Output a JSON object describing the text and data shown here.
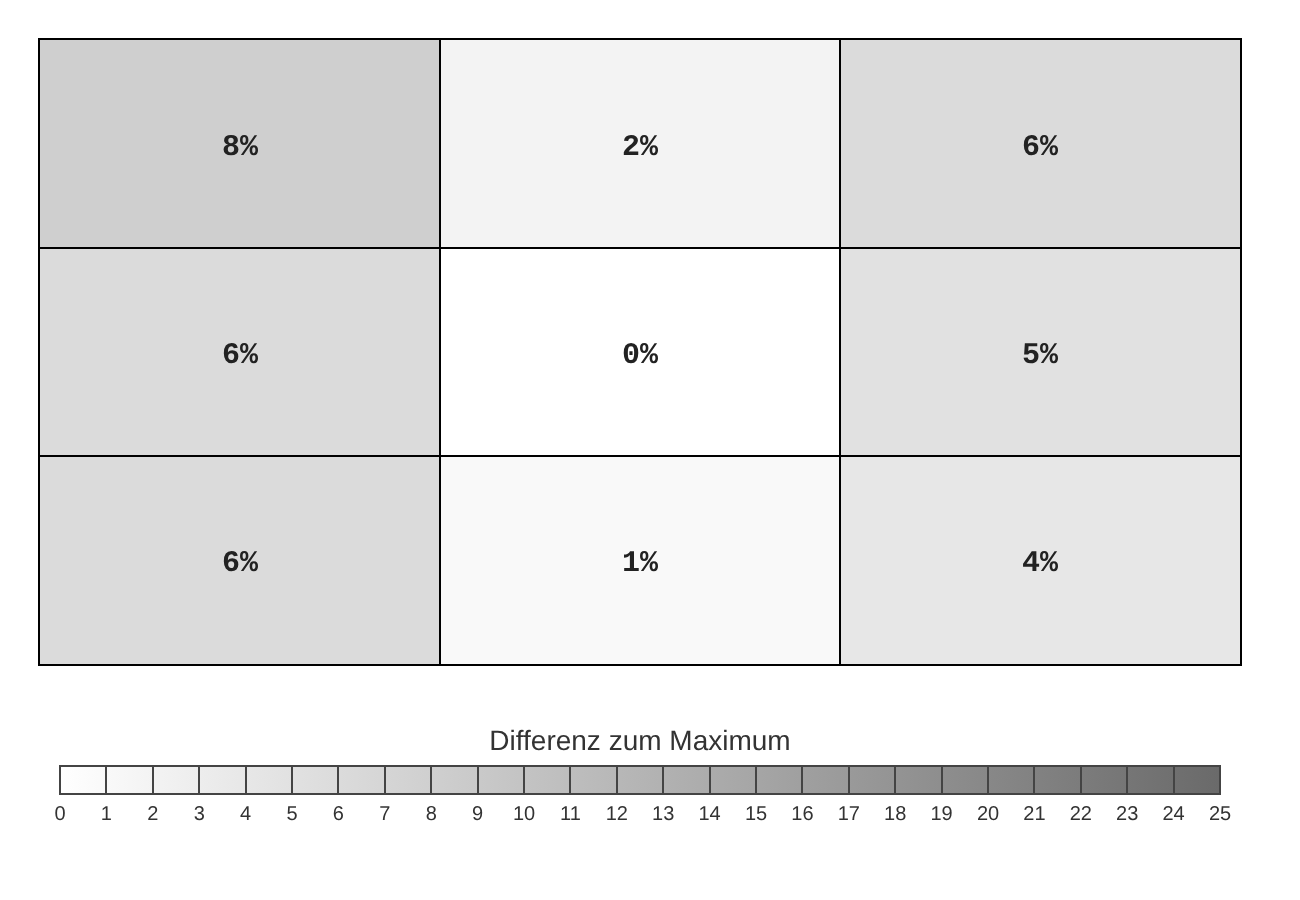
{
  "chart_data": {
    "type": "heatmap",
    "categories": [
      null,
      null,
      null
    ],
    "y_categories": [
      null,
      null,
      null
    ],
    "cells": [
      [
        8,
        2,
        6
      ],
      [
        6,
        0,
        5
      ],
      [
        6,
        1,
        4
      ]
    ],
    "cell_labels": [
      [
        "8%",
        "2%",
        "6%"
      ],
      [
        "6%",
        "0%",
        "5%"
      ],
      [
        "6%",
        "1%",
        "4%"
      ]
    ],
    "clabel": "Differenz zum Maximum",
    "clim": [
      0,
      25
    ],
    "cticks": [
      0,
      1,
      2,
      3,
      4,
      5,
      6,
      7,
      8,
      9,
      10,
      11,
      12,
      13,
      14,
      15,
      16,
      17,
      18,
      19,
      20,
      21,
      22,
      23,
      24,
      25
    ],
    "grid": true
  }
}
